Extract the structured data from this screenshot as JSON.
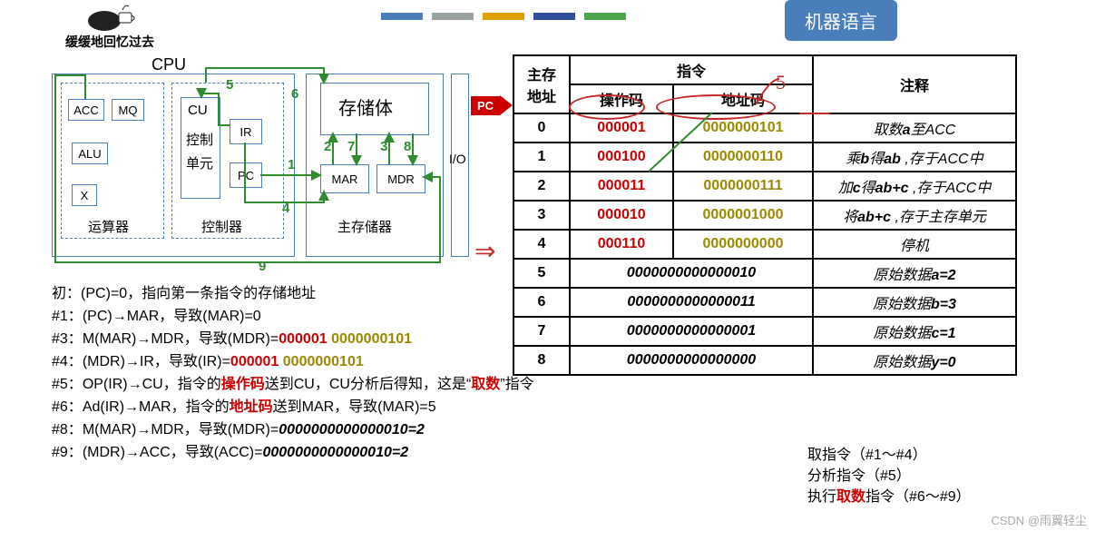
{
  "avatar_caption": "缓缓地回忆过去",
  "stripes": [
    "#4a7ebb",
    "#9aa39e",
    "#e0a100",
    "#2f4e9b",
    "#4da64d"
  ],
  "tag": {
    "text": "机器语言",
    "bg": "#4a7ebb"
  },
  "cpu": {
    "title": "CPU",
    "alu_group": "运算器",
    "ctrl_group": "控制器",
    "mem_group": "主存储器",
    "mem_body": "存储体",
    "io": "I/O",
    "acc": "ACC",
    "mq": "MQ",
    "alu": "ALU",
    "x": "X",
    "cu1": "CU",
    "cu2": "控制",
    "cu3": "单元",
    "ir": "IR",
    "pc": "PC",
    "mar": "MAR",
    "mdr": "MDR",
    "nums": [
      "1",
      "2",
      "3",
      "4",
      "5",
      "6",
      "7",
      "8",
      "9"
    ]
  },
  "steps": [
    {
      "pre": "初：",
      "body": "(PC)=0，指向第一条指令的存储地址"
    },
    {
      "pre": "#1：",
      "body": "(PC)→MAR，导致(MAR)=0"
    },
    {
      "pre": "#3：",
      "body": "M(MAR)→MDR，导致(MDR)=",
      "tail_op": "000001",
      "tail_addr": "0000000101"
    },
    {
      "pre": "#4：",
      "body": "(MDR)→IR，导致(IR)=",
      "tail_op": "000001",
      "tail_addr": "0000000101"
    },
    {
      "pre": "#5：",
      "body": "OP(IR)→CU，指令的",
      "hl1": "操作码",
      "body2": "送到CU，CU分析后得知，这是“",
      "hl2": "取数",
      "body3": "”指令"
    },
    {
      "pre": "#6：",
      "body": "Ad(IR)→MAR，指令的",
      "hl1": "地址码",
      "body2": "送到MAR，导致(MAR)=5"
    },
    {
      "pre": "#8：",
      "body": "M(MAR)→MDR，导致(MDR)=",
      "ital": "0000000000000010=2"
    },
    {
      "pre": "#9：",
      "body": "(MDR)→ACC，导致(ACC)=",
      "ital": "0000000000000010=2"
    }
  ],
  "table": {
    "h_addr": "主存\n地址",
    "h_ins": "指令",
    "h_op": "操作码",
    "h_adr": "地址码",
    "h_note": "注释",
    "rows": [
      {
        "addr": "0",
        "op": "000001",
        "ad": "0000000101",
        "note": "取数<i><b>a</b></i>至ACC"
      },
      {
        "addr": "1",
        "op": "000100",
        "ad": "0000000110",
        "note": "乘<i><b>b</b></i>得<i><b>ab</b></i> ,存于ACC中"
      },
      {
        "addr": "2",
        "op": "000011",
        "ad": "0000000111",
        "note": "加<i><b>c</b></i>得<i><b>ab+c</b></i> ,存于ACC中"
      },
      {
        "addr": "3",
        "op": "000010",
        "ad": "0000001000",
        "note": "将<i><b>ab+c</b></i> ,存于主存单元"
      },
      {
        "addr": "4",
        "op": "000110",
        "ad": "0000000000",
        "note": "停机"
      }
    ],
    "datarows": [
      {
        "addr": "5",
        "data": "0000000000000010",
        "note": "原始数据<i><b>a=2</b></i>"
      },
      {
        "addr": "6",
        "data": "0000000000000011",
        "note": "原始数据<i><b>b=3</b></i>"
      },
      {
        "addr": "7",
        "data": "0000000000000001",
        "note": "原始数据<i><b>c=1</b></i>"
      },
      {
        "addr": "8",
        "data": "0000000000000000",
        "note": "原始数据<i><b>y=0</b></i>"
      }
    ],
    "pc_label": "PC",
    "col_widths": {
      "addr": 48,
      "op": 100,
      "ad": 140,
      "note": 210
    }
  },
  "rnotes": {
    "l1": "取指令（#1～#4）",
    "l2": "分析指令（#5）",
    "l3a": "执行",
    "l3b": "取数",
    "l3c": "指令（#6～#9）"
  },
  "watermark": "CSDN @雨翼轻尘",
  "colors": {
    "frame": "#4a7ebb",
    "green": "#2e8b2e",
    "red": "#cc0000",
    "olive": "#9b8900",
    "hand": "#c62828"
  }
}
